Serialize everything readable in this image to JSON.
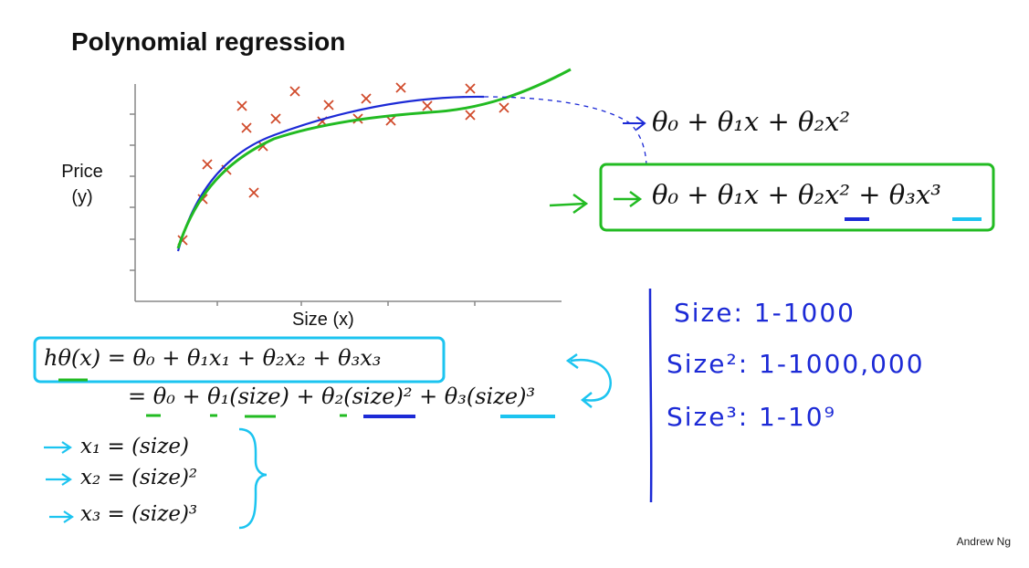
{
  "slide": {
    "title": "Polynomial regression",
    "ylabel_line1": "Price",
    "ylabel_line2": "(y)",
    "xlabel": "Size (x)",
    "author": "Andrew Ng"
  },
  "formulas": {
    "quadratic": "θ₀ + θ₁x + θ₂x²",
    "cubic": "θ₀ + θ₁x + θ₂x² + θ₃x³",
    "hypothesis": "hθ(x) = θ₀ + θ₁x₁ + θ₂x₂ + θ₃x₃",
    "hypothesis_expanded": "= θ₀ + θ₁(size) + θ₂(size)² + θ₃(size)³",
    "x1_def": "x₁ = (size)",
    "x2_def": "x₂ = (size)²",
    "x3_def": "x₃ = (size)³"
  },
  "handwritten_notes": {
    "size_range": "Size: 1-1000",
    "size2_range": "Size²: 1-1000,000",
    "size3_range": "Size³: 1-10⁹"
  },
  "colors": {
    "ink_blue": "#1c2ad6",
    "highlight_green": "#22bb22",
    "highlight_cyan": "#1cc4f0",
    "marker_red": "#d04a2a"
  }
}
